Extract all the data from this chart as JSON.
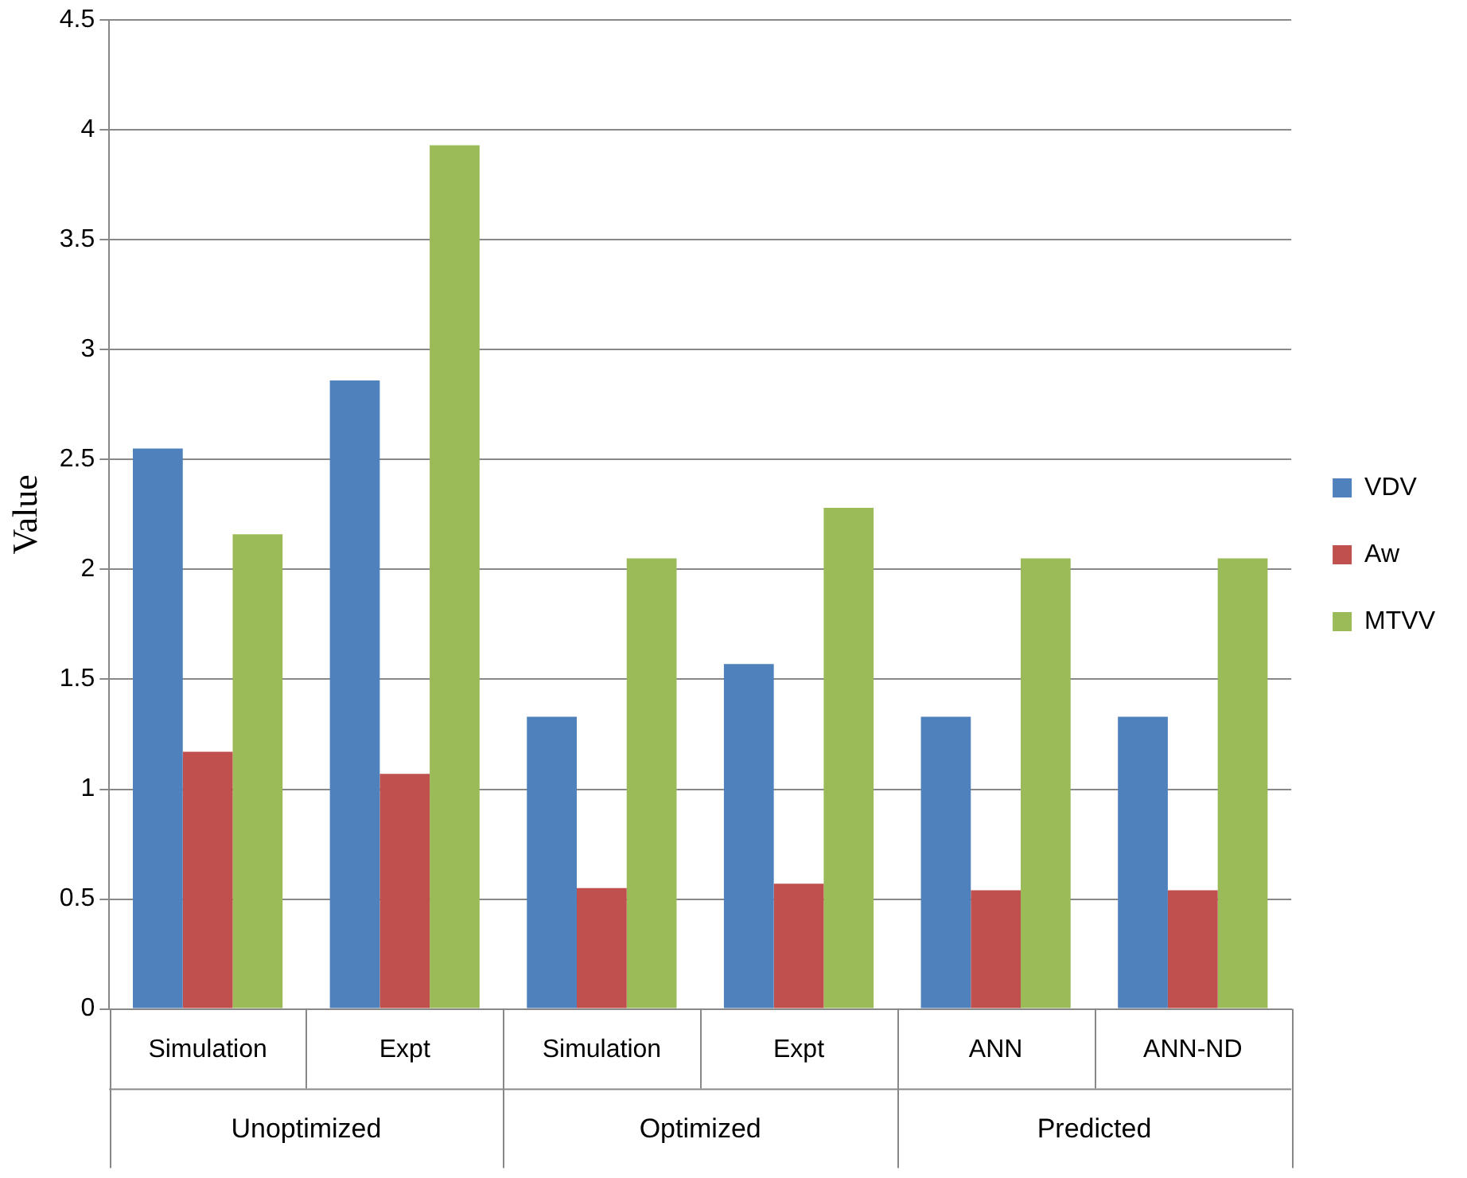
{
  "chart_data": {
    "type": "bar",
    "ylabel": "Value",
    "categories": [
      "Simulation",
      "Expt",
      "Simulation",
      "Expt",
      "ANN",
      "ANN-ND"
    ],
    "series": [
      {
        "name": "VDV",
        "color": "#4f81bd",
        "values": [
          2.55,
          2.86,
          1.33,
          1.57,
          1.33,
          1.33
        ]
      },
      {
        "name": "Aw",
        "color": "#c0504d",
        "values": [
          1.17,
          1.07,
          0.55,
          0.57,
          0.54,
          0.54
        ]
      },
      {
        "name": "MTVV",
        "color": "#9bbb59",
        "values": [
          2.16,
          3.93,
          2.05,
          2.28,
          2.05,
          2.05
        ]
      }
    ],
    "annotations": [
      "Unoptimized",
      "Optimized",
      "Predicted"
    ],
    "ylim": [
      0,
      4.5
    ],
    "yticks": [
      0,
      0.5,
      1,
      1.5,
      2,
      2.5,
      3,
      3.5,
      4,
      4.5
    ],
    "grid": "y",
    "legend": "right"
  }
}
